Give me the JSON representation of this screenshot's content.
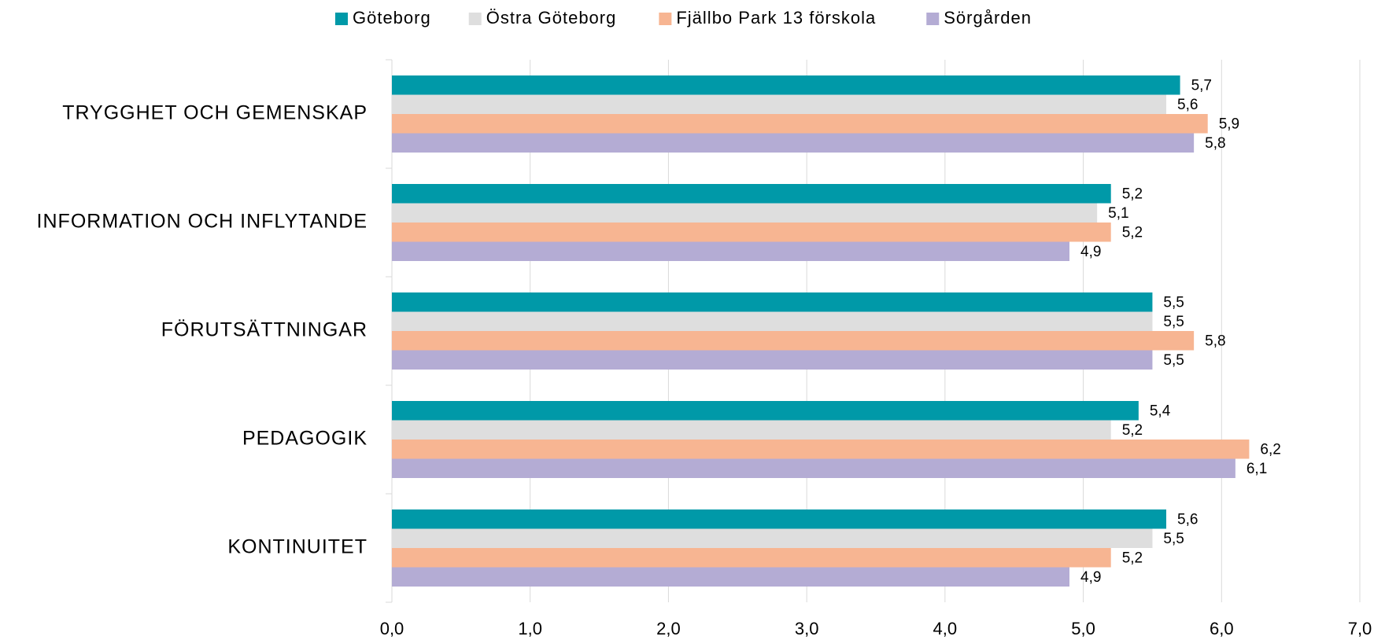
{
  "chart_data": {
    "type": "bar",
    "orientation": "horizontal",
    "categories": [
      "TRYGGHET OCH GEMENSKAP",
      "INFORMATION OCH INFLYTANDE",
      "FÖRUTSÄTTNINGAR",
      "PEDAGOGIK",
      "KONTINUITET"
    ],
    "series": [
      {
        "name": "Göteborg",
        "color": "#0099a8",
        "values": [
          5.7,
          5.2,
          5.5,
          5.4,
          5.6
        ],
        "value_labels": [
          "5,7",
          "5,2",
          "5,5",
          "5,4",
          "5,6"
        ]
      },
      {
        "name": "Östra Göteborg",
        "color": "#dedede",
        "values": [
          5.6,
          5.1,
          5.5,
          5.2,
          5.5
        ],
        "value_labels": [
          "5,6",
          "5,1",
          "5,5",
          "5,2",
          "5,5"
        ]
      },
      {
        "name": "Fjällbo Park 13 förskola",
        "color": "#f7b592",
        "values": [
          5.9,
          5.2,
          5.8,
          6.2,
          5.2
        ],
        "value_labels": [
          "5,9",
          "5,2",
          "5,8",
          "6,2",
          "5,2"
        ]
      },
      {
        "name": "Sörgården",
        "color": "#b4acd4",
        "values": [
          5.8,
          4.9,
          5.5,
          6.1,
          4.9
        ],
        "value_labels": [
          "5,8",
          "4,9",
          "5,5",
          "6,1",
          "4,9"
        ]
      }
    ],
    "xlim": [
      0,
      7
    ],
    "xticks": [
      {
        "value": 0,
        "label": "0,0"
      },
      {
        "value": 1,
        "label": "1,0"
      },
      {
        "value": 2,
        "label": "2,0"
      },
      {
        "value": 3,
        "label": "3,0"
      },
      {
        "value": 4,
        "label": "4,0"
      },
      {
        "value": 5,
        "label": "5,0"
      },
      {
        "value": 6,
        "label": "6,0"
      },
      {
        "value": 7,
        "label": "7,0"
      }
    ],
    "grid": true,
    "legend": "top"
  }
}
